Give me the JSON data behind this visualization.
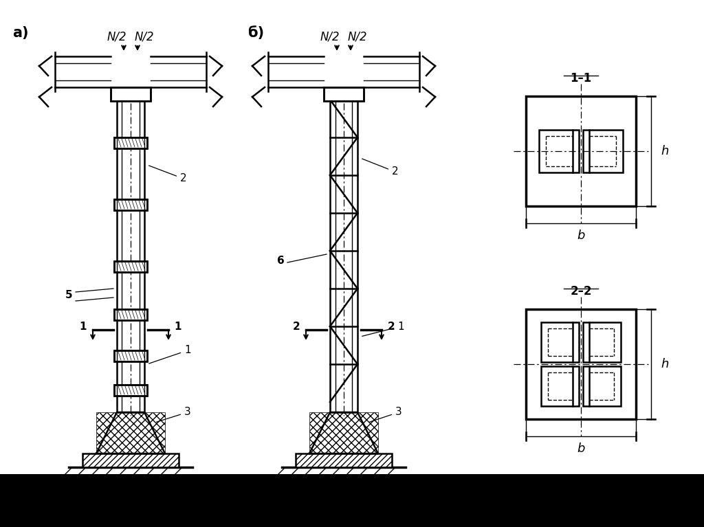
{
  "bg_color": "#ffffff",
  "fig_width": 10.24,
  "fig_height": 7.67,
  "label_a": "а)",
  "label_b": "б)",
  "label_11": "1–1",
  "label_22": "2–2",
  "N2": "N/2",
  "h_label": "h",
  "b_label": "b",
  "line_color": "#000000"
}
